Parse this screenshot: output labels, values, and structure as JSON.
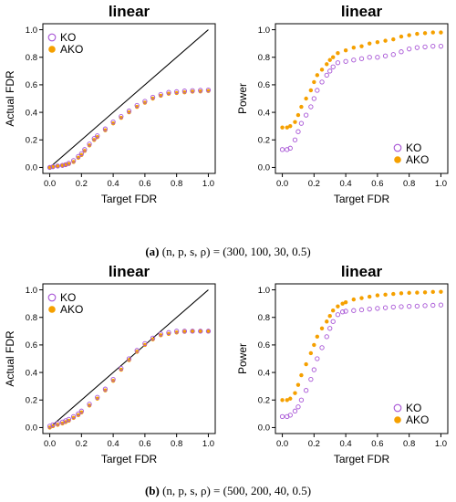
{
  "colors": {
    "ko": "#a855d6",
    "ako": "#f5a000",
    "diagonal": "#000000"
  },
  "captions": [
    {
      "tag": "(a)",
      "formula": "(n, p, s, ρ) = (300, 100, 30, 0.5)"
    },
    {
      "tag": "(b)",
      "formula": "(n, p, s, ρ) = (500, 200, 40, 0.5)"
    }
  ],
  "chart_data": [
    {
      "type": "scatter",
      "title": "linear",
      "xlabel": "Target FDR",
      "ylabel": "Actual FDR",
      "xlim": [
        0,
        1
      ],
      "ylim": [
        0,
        1
      ],
      "diagonal": true,
      "legend": "top-left",
      "xticks": [
        "0.0",
        "0.2",
        "0.4",
        "0.6",
        "0.8",
        "1.0"
      ],
      "yticks": [
        "0.0",
        "0.2",
        "0.4",
        "0.6",
        "0.8",
        "1.0"
      ],
      "series": [
        {
          "name": "KO",
          "marker": "open-circle",
          "x": [
            0,
            0.02,
            0.05,
            0.08,
            0.1,
            0.12,
            0.15,
            0.18,
            0.2,
            0.22,
            0.25,
            0.28,
            0.3,
            0.35,
            0.4,
            0.45,
            0.5,
            0.55,
            0.6,
            0.65,
            0.7,
            0.75,
            0.8,
            0.85,
            0.9,
            0.95,
            1.0
          ],
          "y": [
            0,
            0.005,
            0.01,
            0.015,
            0.02,
            0.03,
            0.05,
            0.08,
            0.1,
            0.13,
            0.17,
            0.21,
            0.23,
            0.28,
            0.33,
            0.37,
            0.41,
            0.45,
            0.48,
            0.51,
            0.53,
            0.545,
            0.55,
            0.555,
            0.558,
            0.56,
            0.562
          ]
        },
        {
          "name": "AKO",
          "marker": "filled-circle",
          "x": [
            0,
            0.02,
            0.05,
            0.08,
            0.1,
            0.12,
            0.15,
            0.18,
            0.2,
            0.22,
            0.25,
            0.28,
            0.3,
            0.35,
            0.4,
            0.45,
            0.5,
            0.55,
            0.6,
            0.65,
            0.7,
            0.75,
            0.8,
            0.85,
            0.9,
            0.95,
            1.0
          ],
          "y": [
            0,
            0.003,
            0.008,
            0.012,
            0.018,
            0.025,
            0.04,
            0.07,
            0.09,
            0.12,
            0.16,
            0.2,
            0.22,
            0.27,
            0.32,
            0.36,
            0.4,
            0.44,
            0.47,
            0.5,
            0.52,
            0.535,
            0.54,
            0.545,
            0.55,
            0.552,
            0.555
          ]
        }
      ]
    },
    {
      "type": "scatter",
      "title": "linear",
      "xlabel": "Target FDR",
      "ylabel": "Power",
      "xlim": [
        0,
        1
      ],
      "ylim": [
        0,
        1
      ],
      "diagonal": false,
      "legend": "bottom-right",
      "xticks": [
        "0.0",
        "0.2",
        "0.4",
        "0.6",
        "0.8",
        "1.0"
      ],
      "yticks": [
        "0.0",
        "0.2",
        "0.4",
        "0.6",
        "0.8",
        "1.0"
      ],
      "series": [
        {
          "name": "KO",
          "marker": "open-circle",
          "x": [
            0,
            0.03,
            0.05,
            0.08,
            0.1,
            0.12,
            0.15,
            0.18,
            0.2,
            0.22,
            0.25,
            0.28,
            0.3,
            0.32,
            0.35,
            0.4,
            0.45,
            0.5,
            0.55,
            0.6,
            0.65,
            0.7,
            0.75,
            0.8,
            0.85,
            0.9,
            0.95,
            1.0
          ],
          "y": [
            0.13,
            0.13,
            0.14,
            0.2,
            0.26,
            0.32,
            0.38,
            0.44,
            0.5,
            0.56,
            0.62,
            0.67,
            0.7,
            0.73,
            0.76,
            0.77,
            0.78,
            0.79,
            0.8,
            0.8,
            0.81,
            0.82,
            0.84,
            0.86,
            0.87,
            0.875,
            0.88,
            0.88
          ]
        },
        {
          "name": "AKO",
          "marker": "filled-circle",
          "x": [
            0,
            0.03,
            0.05,
            0.08,
            0.1,
            0.12,
            0.15,
            0.18,
            0.2,
            0.22,
            0.25,
            0.28,
            0.3,
            0.32,
            0.35,
            0.4,
            0.45,
            0.5,
            0.55,
            0.6,
            0.65,
            0.7,
            0.75,
            0.8,
            0.85,
            0.9,
            0.95,
            1.0
          ],
          "y": [
            0.29,
            0.29,
            0.3,
            0.33,
            0.38,
            0.44,
            0.5,
            0.56,
            0.62,
            0.67,
            0.71,
            0.75,
            0.78,
            0.8,
            0.83,
            0.85,
            0.87,
            0.88,
            0.9,
            0.91,
            0.92,
            0.93,
            0.95,
            0.96,
            0.97,
            0.975,
            0.98,
            0.98
          ]
        }
      ]
    },
    {
      "type": "scatter",
      "title": "linear",
      "xlabel": "Target FDR",
      "ylabel": "Actual FDR",
      "xlim": [
        0,
        1
      ],
      "ylim": [
        0,
        1
      ],
      "diagonal": true,
      "legend": "top-left",
      "xticks": [
        "0.0",
        "0.2",
        "0.4",
        "0.6",
        "0.8",
        "1.0"
      ],
      "yticks": [
        "0.0",
        "0.2",
        "0.4",
        "0.6",
        "0.8",
        "1.0"
      ],
      "series": [
        {
          "name": "KO",
          "marker": "open-circle",
          "x": [
            0,
            0.02,
            0.05,
            0.08,
            0.1,
            0.12,
            0.15,
            0.18,
            0.2,
            0.25,
            0.3,
            0.35,
            0.4,
            0.45,
            0.5,
            0.55,
            0.6,
            0.65,
            0.7,
            0.75,
            0.8,
            0.85,
            0.9,
            0.95,
            1.0
          ],
          "y": [
            0.01,
            0.02,
            0.03,
            0.04,
            0.05,
            0.06,
            0.08,
            0.1,
            0.12,
            0.17,
            0.22,
            0.28,
            0.35,
            0.43,
            0.5,
            0.56,
            0.61,
            0.65,
            0.68,
            0.69,
            0.7,
            0.7,
            0.7,
            0.7,
            0.7
          ]
        },
        {
          "name": "AKO",
          "marker": "filled-circle",
          "x": [
            0,
            0.02,
            0.05,
            0.08,
            0.1,
            0.12,
            0.15,
            0.18,
            0.2,
            0.25,
            0.3,
            0.35,
            0.4,
            0.45,
            0.5,
            0.55,
            0.6,
            0.65,
            0.7,
            0.75,
            0.8,
            0.85,
            0.9,
            0.95,
            1.0
          ],
          "y": [
            0,
            0.01,
            0.02,
            0.03,
            0.04,
            0.05,
            0.07,
            0.09,
            0.11,
            0.16,
            0.21,
            0.27,
            0.34,
            0.42,
            0.49,
            0.55,
            0.6,
            0.64,
            0.67,
            0.68,
            0.69,
            0.695,
            0.698,
            0.7,
            0.7
          ]
        }
      ]
    },
    {
      "type": "scatter",
      "title": "linear",
      "xlabel": "Target FDR",
      "ylabel": "Power",
      "xlim": [
        0,
        1
      ],
      "ylim": [
        0,
        1
      ],
      "diagonal": false,
      "legend": "bottom-right",
      "xticks": [
        "0.0",
        "0.2",
        "0.4",
        "0.6",
        "0.8",
        "1.0"
      ],
      "yticks": [
        "0.0",
        "0.2",
        "0.4",
        "0.6",
        "0.8",
        "1.0"
      ],
      "series": [
        {
          "name": "KO",
          "marker": "open-circle",
          "x": [
            0,
            0.03,
            0.05,
            0.08,
            0.1,
            0.12,
            0.15,
            0.18,
            0.2,
            0.22,
            0.25,
            0.28,
            0.3,
            0.32,
            0.35,
            0.38,
            0.4,
            0.45,
            0.5,
            0.55,
            0.6,
            0.65,
            0.7,
            0.75,
            0.8,
            0.85,
            0.9,
            0.95,
            1.0
          ],
          "y": [
            0.08,
            0.08,
            0.09,
            0.12,
            0.15,
            0.2,
            0.27,
            0.35,
            0.42,
            0.5,
            0.58,
            0.66,
            0.72,
            0.77,
            0.82,
            0.84,
            0.845,
            0.85,
            0.855,
            0.86,
            0.865,
            0.87,
            0.875,
            0.878,
            0.88,
            0.882,
            0.885,
            0.888,
            0.89
          ]
        },
        {
          "name": "AKO",
          "marker": "filled-circle",
          "x": [
            0,
            0.03,
            0.05,
            0.08,
            0.1,
            0.12,
            0.15,
            0.18,
            0.2,
            0.22,
            0.25,
            0.28,
            0.3,
            0.32,
            0.35,
            0.38,
            0.4,
            0.45,
            0.5,
            0.55,
            0.6,
            0.65,
            0.7,
            0.75,
            0.8,
            0.85,
            0.9,
            0.95,
            1.0
          ],
          "y": [
            0.2,
            0.2,
            0.21,
            0.25,
            0.31,
            0.38,
            0.46,
            0.54,
            0.6,
            0.66,
            0.72,
            0.77,
            0.81,
            0.85,
            0.88,
            0.9,
            0.91,
            0.93,
            0.94,
            0.95,
            0.96,
            0.965,
            0.97,
            0.975,
            0.978,
            0.98,
            0.982,
            0.985,
            0.986
          ]
        }
      ]
    }
  ]
}
